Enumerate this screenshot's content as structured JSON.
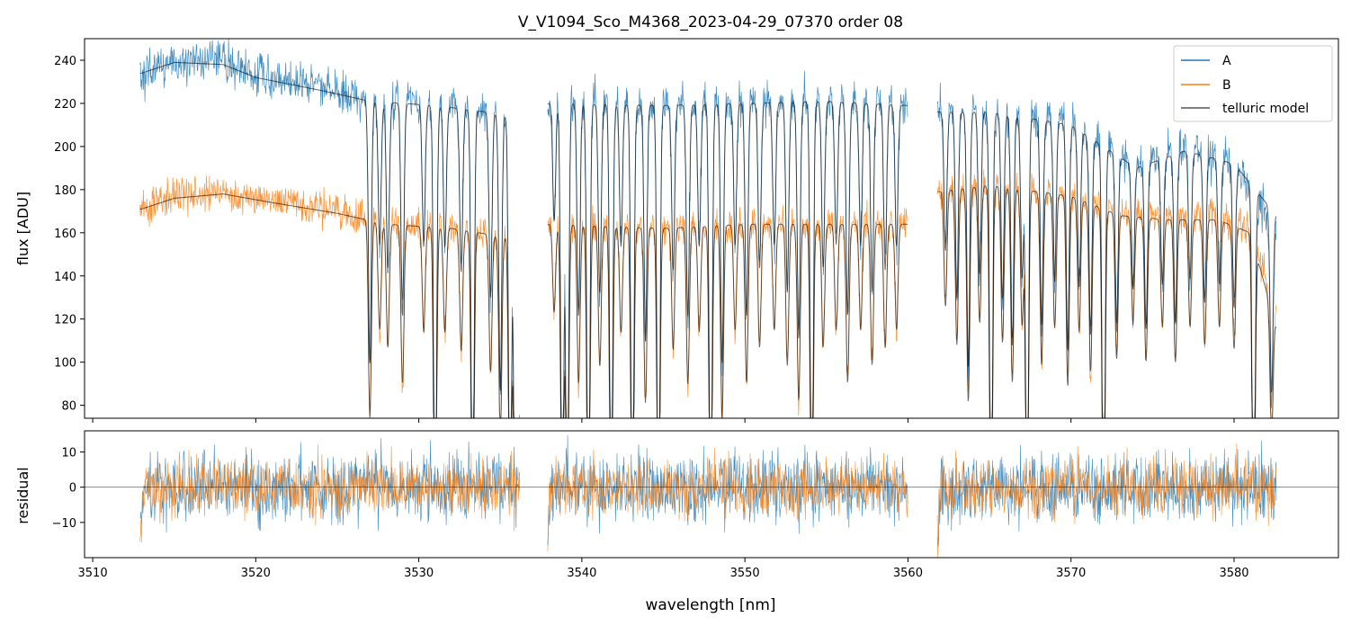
{
  "chart_data": {
    "type": "line",
    "title": "V_V1094_Sco_M4368_2023-04-29_07370  order 08",
    "xlabel": "wavelength [nm]",
    "xlim": [
      3509.5,
      3586.4
    ],
    "x_ticks": [
      3510,
      3520,
      3530,
      3540,
      3550,
      3560,
      3570,
      3580
    ],
    "x_tick_labels": [
      "3510",
      "3520",
      "3530",
      "3540",
      "3550",
      "3560",
      "3570",
      "3580"
    ],
    "x_segments": [
      [
        3512.9,
        3536.2
      ],
      [
        3537.9,
        3560.0
      ],
      [
        3561.8,
        3582.6
      ]
    ],
    "panels": [
      {
        "ylabel": "flux [ADU]",
        "ylim": [
          74,
          250
        ],
        "y_ticks": [
          80,
          100,
          120,
          140,
          160,
          180,
          200,
          220,
          240
        ],
        "y_tick_labels": [
          "80",
          "100",
          "120",
          "140",
          "160",
          "180",
          "200",
          "220",
          "240"
        ],
        "legend_position": "top-right",
        "series": [
          {
            "name": "A",
            "color": "#1f77b4",
            "continuum_knots": [
              [
                3513.0,
                233
              ],
              [
                3515.0,
                240
              ],
              [
                3518.0,
                240
              ],
              [
                3520.0,
                233
              ],
              [
                3524.0,
                228
              ],
              [
                3527.0,
                222
              ],
              [
                3531.0,
                220
              ],
              [
                3536.2,
                215
              ],
              [
                3538.0,
                222
              ],
              [
                3545.0,
                220
              ],
              [
                3555.0,
                222
              ],
              [
                3560.0,
                220
              ],
              [
                3561.8,
                218
              ],
              [
                3565.0,
                218
              ],
              [
                3570.0,
                212
              ],
              [
                3574.0,
                192
              ],
              [
                3577.0,
                200
              ],
              [
                3580.0,
                193
              ],
              [
                3582.6,
                160
              ]
            ]
          },
          {
            "name": "B",
            "color": "#ff7f0e",
            "continuum_knots": [
              [
                3513.0,
                170
              ],
              [
                3515.0,
                177
              ],
              [
                3518.0,
                178
              ],
              [
                3521.0,
                175
              ],
              [
                3525.0,
                170
              ],
              [
                3528.0,
                165
              ],
              [
                3532.0,
                163
              ],
              [
                3536.2,
                158
              ],
              [
                3538.0,
                165
              ],
              [
                3545.0,
                163
              ],
              [
                3550.0,
                165
              ],
              [
                3555.0,
                165
              ],
              [
                3560.0,
                165
              ],
              [
                3561.8,
                180
              ],
              [
                3565.0,
                183
              ],
              [
                3570.0,
                178
              ],
              [
                3573.0,
                170
              ],
              [
                3576.0,
                168
              ],
              [
                3579.0,
                168
              ],
              [
                3581.0,
                162
              ],
              [
                3582.6,
                120
              ]
            ]
          },
          {
            "name": "telluric model",
            "color": "#555555",
            "continuum_knots_A": [
              [
                3513.0,
                234
              ],
              [
                3515.0,
                239
              ],
              [
                3518.0,
                238
              ],
              [
                3520.0,
                232
              ],
              [
                3524.0,
                226
              ],
              [
                3527.0,
                221
              ],
              [
                3531.0,
                219
              ],
              [
                3536.2,
                214
              ],
              [
                3538.0,
                220
              ],
              [
                3545.0,
                219
              ],
              [
                3555.0,
                221
              ],
              [
                3560.0,
                219
              ],
              [
                3561.8,
                216
              ],
              [
                3565.0,
                216
              ],
              [
                3570.0,
                210
              ],
              [
                3574.0,
                190
              ],
              [
                3577.0,
                198
              ],
              [
                3580.0,
                192
              ],
              [
                3582.6,
                168
              ]
            ],
            "continuum_knots_B": [
              [
                3513.0,
                171
              ],
              [
                3515.0,
                176
              ],
              [
                3518.0,
                178
              ],
              [
                3521.0,
                174
              ],
              [
                3525.0,
                169
              ],
              [
                3528.0,
                164
              ],
              [
                3532.0,
                162
              ],
              [
                3536.2,
                157
              ],
              [
                3538.0,
                164
              ],
              [
                3545.0,
                162
              ],
              [
                3550.0,
                164
              ],
              [
                3555.0,
                164
              ],
              [
                3560.0,
                164
              ],
              [
                3561.8,
                179
              ],
              [
                3565.0,
                182
              ],
              [
                3570.0,
                177
              ],
              [
                3573.0,
                168
              ],
              [
                3576.0,
                166
              ],
              [
                3579.0,
                166
              ],
              [
                3581.0,
                160
              ],
              [
                3582.6,
                116
              ]
            ]
          }
        ],
        "absorption_lines": [
          {
            "x": 3527.0,
            "depth": 0.55
          },
          {
            "x": 3527.6,
            "depth": 0.3
          },
          {
            "x": 3528.1,
            "depth": 0.35
          },
          {
            "x": 3529.0,
            "depth": 0.45
          },
          {
            "x": 3530.3,
            "depth": 0.3
          },
          {
            "x": 3531.0,
            "depth": 0.98
          },
          {
            "x": 3531.6,
            "depth": 0.3
          },
          {
            "x": 3532.6,
            "depth": 0.35
          },
          {
            "x": 3533.3,
            "depth": 0.98
          },
          {
            "x": 3534.4,
            "depth": 0.4
          },
          {
            "x": 3535.0,
            "depth": 0.6
          },
          {
            "x": 3535.6,
            "depth": 0.98
          },
          {
            "x": 3535.9,
            "depth": 0.98
          },
          {
            "x": 3536.1,
            "depth": 0.98
          },
          {
            "x": 3538.3,
            "depth": 0.25
          },
          {
            "x": 3538.8,
            "depth": 0.98
          },
          {
            "x": 3539.1,
            "depth": 0.98
          },
          {
            "x": 3539.8,
            "depth": 0.45
          },
          {
            "x": 3540.4,
            "depth": 0.98
          },
          {
            "x": 3541.1,
            "depth": 0.4
          },
          {
            "x": 3541.8,
            "depth": 0.98
          },
          {
            "x": 3542.4,
            "depth": 0.3
          },
          {
            "x": 3543.1,
            "depth": 0.98
          },
          {
            "x": 3543.9,
            "depth": 0.5
          },
          {
            "x": 3544.7,
            "depth": 0.98
          },
          {
            "x": 3545.6,
            "depth": 0.35
          },
          {
            "x": 3546.5,
            "depth": 0.45
          },
          {
            "x": 3547.2,
            "depth": 0.3
          },
          {
            "x": 3547.9,
            "depth": 0.98
          },
          {
            "x": 3548.6,
            "depth": 0.55
          },
          {
            "x": 3549.4,
            "depth": 0.3
          },
          {
            "x": 3550.1,
            "depth": 0.45
          },
          {
            "x": 3550.9,
            "depth": 0.35
          },
          {
            "x": 3551.8,
            "depth": 0.3
          },
          {
            "x": 3552.6,
            "depth": 0.4
          },
          {
            "x": 3553.3,
            "depth": 0.5
          },
          {
            "x": 3554.1,
            "depth": 0.98
          },
          {
            "x": 3554.8,
            "depth": 0.35
          },
          {
            "x": 3555.6,
            "depth": 0.3
          },
          {
            "x": 3556.3,
            "depth": 0.45
          },
          {
            "x": 3557.1,
            "depth": 0.3
          },
          {
            "x": 3557.8,
            "depth": 0.4
          },
          {
            "x": 3558.6,
            "depth": 0.35
          },
          {
            "x": 3559.3,
            "depth": 0.3
          },
          {
            "x": 3562.3,
            "depth": 0.3
          },
          {
            "x": 3563.0,
            "depth": 0.4
          },
          {
            "x": 3563.7,
            "depth": 0.55
          },
          {
            "x": 3564.4,
            "depth": 0.35
          },
          {
            "x": 3565.1,
            "depth": 0.98
          },
          {
            "x": 3565.8,
            "depth": 0.4
          },
          {
            "x": 3566.4,
            "depth": 0.5
          },
          {
            "x": 3567.0,
            "depth": 0.35
          },
          {
            "x": 3567.3,
            "depth": 0.98
          },
          {
            "x": 3568.2,
            "depth": 0.45
          },
          {
            "x": 3569.0,
            "depth": 0.35
          },
          {
            "x": 3569.8,
            "depth": 0.5
          },
          {
            "x": 3570.5,
            "depth": 0.35
          },
          {
            "x": 3571.2,
            "depth": 0.45
          },
          {
            "x": 3572.0,
            "depth": 0.98
          },
          {
            "x": 3572.8,
            "depth": 0.4
          },
          {
            "x": 3573.8,
            "depth": 0.3
          },
          {
            "x": 3574.6,
            "depth": 0.4
          },
          {
            "x": 3575.6,
            "depth": 0.3
          },
          {
            "x": 3576.4,
            "depth": 0.4
          },
          {
            "x": 3577.3,
            "depth": 0.3
          },
          {
            "x": 3578.2,
            "depth": 0.35
          },
          {
            "x": 3579.1,
            "depth": 0.3
          },
          {
            "x": 3580.0,
            "depth": 0.35
          },
          {
            "x": 3581.2,
            "depth": 0.98
          },
          {
            "x": 3582.3,
            "depth": 0.5
          }
        ]
      },
      {
        "ylabel": "residual",
        "ylim": [
          -20,
          16
        ],
        "y_ticks": [
          -10,
          0,
          10
        ],
        "y_tick_labels": [
          "−10",
          "0",
          "10"
        ],
        "zero_line": 0,
        "series": [
          {
            "name": "A",
            "color": "#1f77b4",
            "noise_sigma": 5.0
          },
          {
            "name": "B",
            "color": "#ff7f0e",
            "noise_sigma": 4.2
          }
        ]
      }
    ]
  }
}
